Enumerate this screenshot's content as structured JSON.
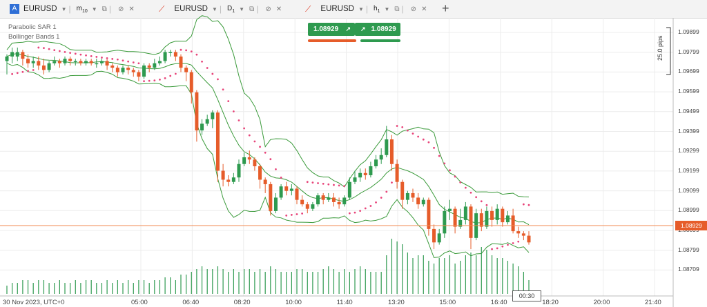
{
  "tabs": [
    {
      "symbol": "EURUSD",
      "timeframe_main": "m",
      "timeframe_sub": "10",
      "badge": "A"
    },
    {
      "symbol": "EURUSD",
      "timeframe_main": "D",
      "timeframe_sub": "1"
    },
    {
      "symbol": "EURUSD",
      "timeframe_main": "h",
      "timeframe_sub": "1"
    }
  ],
  "indicators": [
    "Parabolic SAR 1",
    "Bollinger Bands 1"
  ],
  "trade": {
    "sell_price": "1.08929",
    "buy_price": "1.08929"
  },
  "price_axis": [
    "1.09899",
    "1.09799",
    "1.09699",
    "1.09599",
    "1.09499",
    "1.09399",
    "1.09299",
    "1.09199",
    "1.09099",
    "1.08999",
    "1.08899",
    "1.08799",
    "1.08709"
  ],
  "current_price": "1.08929",
  "range_label": "25.0 pips",
  "time_axis": [
    "30 Nov 2023, UTC+0",
    "05:00",
    "06:40",
    "08:20",
    "10:00",
    "11:40",
    "13:20",
    "15:00",
    "16:40",
    "18:20",
    "20:00",
    "21:40"
  ],
  "time_cursor": "00:30",
  "colors": {
    "bull": "#2e9a4f",
    "bear": "#e65c2a",
    "sar": "#e8457a",
    "band": "#3a9a3a",
    "price_line": "#f08a52"
  },
  "chart_data": {
    "type": "candlestick",
    "title": "",
    "ylim": [
      1.087,
      1.0992
    ],
    "candles": [
      [
        1.0974,
        1.0976,
        1.0968,
        1.0977
      ],
      [
        1.0976,
        1.0978,
        1.0973,
        1.098
      ],
      [
        1.0976,
        1.0978,
        1.0974,
        1.098
      ],
      [
        1.0978,
        1.0975,
        1.0972,
        1.0979
      ],
      [
        1.0975,
        1.0973,
        1.0971,
        1.0977
      ],
      [
        1.0973,
        1.0974,
        1.0971,
        1.0976
      ],
      [
        1.0974,
        1.0972,
        1.097,
        1.0976
      ],
      [
        1.0972,
        1.097,
        1.0968,
        1.0975
      ],
      [
        1.097,
        1.0973,
        1.0969,
        1.0974
      ],
      [
        1.0973,
        1.0974,
        1.0972,
        1.0976
      ],
      [
        1.0974,
        1.0973,
        1.0971,
        1.0975
      ],
      [
        1.0973,
        1.0975,
        1.0972,
        1.0976
      ],
      [
        1.0975,
        1.0974,
        1.0972,
        1.0976
      ],
      [
        1.0974,
        1.0974,
        1.0972,
        1.0975
      ],
      [
        1.0974,
        1.0973,
        1.0972,
        1.0975
      ],
      [
        1.0973,
        1.0974,
        1.0972,
        1.0975
      ],
      [
        1.0974,
        1.0973,
        1.0972,
        1.0975
      ],
      [
        1.0973,
        1.0973,
        1.0971,
        1.0975
      ],
      [
        1.0973,
        1.0974,
        1.0972,
        1.0975
      ],
      [
        1.0974,
        1.0972,
        1.097,
        1.0975
      ],
      [
        1.0972,
        1.0971,
        1.0969,
        1.0973
      ],
      [
        1.0971,
        1.0969,
        1.0967,
        1.0972
      ],
      [
        1.0969,
        1.0971,
        1.0968,
        1.0972
      ],
      [
        1.0971,
        1.097,
        1.0968,
        1.0972
      ],
      [
        1.097,
        1.0969,
        1.0967,
        1.0971
      ],
      [
        1.0969,
        1.0967,
        1.0965,
        1.097
      ],
      [
        1.0967,
        1.0972,
        1.0966,
        1.0973
      ],
      [
        1.0972,
        1.0971,
        1.0969,
        1.0973
      ],
      [
        1.0971,
        1.0973,
        1.097,
        1.0975
      ],
      [
        1.0973,
        1.0974,
        1.0972,
        1.0976
      ],
      [
        1.0974,
        1.0978,
        1.0973,
        1.0979
      ],
      [
        1.0978,
        1.0978,
        1.0976,
        1.0979
      ],
      [
        1.0978,
        1.0976,
        1.0974,
        1.0979
      ],
      [
        1.0976,
        1.0971,
        1.0969,
        1.0977
      ],
      [
        1.0971,
        1.0969,
        1.0965,
        1.0972
      ],
      [
        1.0969,
        1.096,
        1.0955,
        1.097
      ],
      [
        1.096,
        1.0943,
        1.0938,
        1.0961
      ],
      [
        1.0943,
        1.0946,
        1.0941,
        1.0948
      ],
      [
        1.0946,
        1.0948,
        1.0945,
        1.095
      ],
      [
        1.0948,
        1.0951,
        1.0944,
        1.0952
      ],
      [
        1.0951,
        1.0925,
        1.092,
        1.0952
      ],
      [
        1.0925,
        1.0921,
        1.0918,
        1.0928
      ],
      [
        1.0921,
        1.092,
        1.0918,
        1.0923
      ],
      [
        1.092,
        1.0922,
        1.0919,
        1.0924
      ],
      [
        1.0922,
        1.0928,
        1.092,
        1.093
      ],
      [
        1.0928,
        1.0931,
        1.0927,
        1.0933
      ],
      [
        1.0931,
        1.093,
        1.0928,
        1.0934
      ],
      [
        1.093,
        1.0927,
        1.0925,
        1.0931
      ],
      [
        1.0927,
        1.0921,
        1.0917,
        1.0928
      ],
      [
        1.0921,
        1.0919,
        1.0915,
        1.0922
      ],
      [
        1.0919,
        1.0907,
        1.0905,
        1.092
      ],
      [
        1.0907,
        1.0913,
        1.0906,
        1.0915
      ],
      [
        1.0913,
        1.0918,
        1.0912,
        1.0919
      ],
      [
        1.0918,
        1.0916,
        1.0914,
        1.092
      ],
      [
        1.0916,
        1.0917,
        1.0914,
        1.0919
      ],
      [
        1.0917,
        1.0912,
        1.091,
        1.0918
      ],
      [
        1.0912,
        1.091,
        1.0909,
        1.0914
      ],
      [
        1.091,
        1.0908,
        1.0906,
        1.0911
      ],
      [
        1.0908,
        1.091,
        1.0907,
        1.0911
      ],
      [
        1.091,
        1.0914,
        1.0909,
        1.0915
      ],
      [
        1.0914,
        1.0912,
        1.091,
        1.0915
      ],
      [
        1.0912,
        1.0913,
        1.0911,
        1.0915
      ],
      [
        1.0913,
        1.0911,
        1.0909,
        1.0915
      ],
      [
        1.0911,
        1.091,
        1.0908,
        1.0913
      ],
      [
        1.091,
        1.0913,
        1.0909,
        1.0914
      ],
      [
        1.0913,
        1.092,
        1.0912,
        1.0922
      ],
      [
        1.092,
        1.0922,
        1.0919,
        1.0925
      ],
      [
        1.0922,
        1.0924,
        1.092,
        1.0926
      ],
      [
        1.0924,
        1.0923,
        1.0921,
        1.0926
      ],
      [
        1.0923,
        1.0927,
        1.0922,
        1.0929
      ],
      [
        1.0927,
        1.093,
        1.0926,
        1.0932
      ],
      [
        1.093,
        1.0932,
        1.0928,
        1.0935
      ],
      [
        1.0932,
        1.0939,
        1.0931,
        1.0945
      ],
      [
        1.0939,
        1.0928,
        1.0925,
        1.0941
      ],
      [
        1.0928,
        1.092,
        1.0917,
        1.093
      ],
      [
        1.092,
        1.0912,
        1.0908,
        1.0921
      ],
      [
        1.0912,
        1.0915,
        1.091,
        1.0916
      ],
      [
        1.0915,
        1.0913,
        1.0911,
        1.0917
      ],
      [
        1.0913,
        1.091,
        1.0908,
        1.0915
      ],
      [
        1.091,
        1.0912,
        1.0909,
        1.0913
      ],
      [
        1.0912,
        1.0899,
        1.0896,
        1.0913
      ],
      [
        1.0899,
        1.0893,
        1.089,
        1.0901
      ],
      [
        1.0893,
        1.0897,
        1.0892,
        1.0899
      ],
      [
        1.0897,
        1.0907,
        1.0895,
        1.0909
      ],
      [
        1.0907,
        1.0908,
        1.0903,
        1.0912
      ],
      [
        1.0908,
        1.09,
        1.0897,
        1.0909
      ],
      [
        1.09,
        1.0903,
        1.0899,
        1.0908
      ],
      [
        1.0903,
        1.0909,
        1.0901,
        1.0911
      ],
      [
        1.0909,
        1.0895,
        1.089,
        1.091
      ],
      [
        1.0895,
        1.0906,
        1.0894,
        1.0908
      ],
      [
        1.0906,
        1.09,
        1.0898,
        1.0908
      ],
      [
        1.09,
        1.0907,
        1.0899,
        1.0909
      ],
      [
        1.0907,
        1.0903,
        1.09,
        1.0909
      ],
      [
        1.0903,
        1.0908,
        1.0901,
        1.091
      ],
      [
        1.0908,
        1.0902,
        1.09,
        1.0909
      ],
      [
        1.0902,
        1.0905,
        1.0901,
        1.0907
      ],
      [
        1.0905,
        1.0898,
        1.0897,
        1.0908
      ],
      [
        1.0898,
        1.0897,
        1.0895,
        1.09
      ],
      [
        1.0897,
        1.0896,
        1.0894,
        1.0898
      ],
      [
        1.0896,
        1.0893,
        1.0892,
        1.0898
      ]
    ],
    "volume": [
      3,
      4,
      4,
      5,
      5,
      4,
      5,
      5,
      4,
      4,
      5,
      4,
      4,
      5,
      4,
      5,
      5,
      4,
      4,
      5,
      4,
      5,
      4,
      5,
      4,
      5,
      5,
      4,
      5,
      5,
      6,
      6,
      5,
      7,
      7,
      8,
      9,
      10,
      9,
      9,
      10,
      9,
      8,
      9,
      8,
      9,
      9,
      8,
      9,
      8,
      10,
      9,
      8,
      8,
      8,
      9,
      9,
      8,
      8,
      8,
      9,
      10,
      9,
      8,
      9,
      8,
      9,
      10,
      9,
      8,
      8,
      8,
      14,
      20,
      19,
      18,
      15,
      13,
      14,
      14,
      12,
      11,
      13,
      13,
      14,
      11,
      12,
      14,
      15,
      14,
      17,
      16,
      14,
      13,
      13,
      12,
      11,
      10,
      8,
      5
    ]
  }
}
